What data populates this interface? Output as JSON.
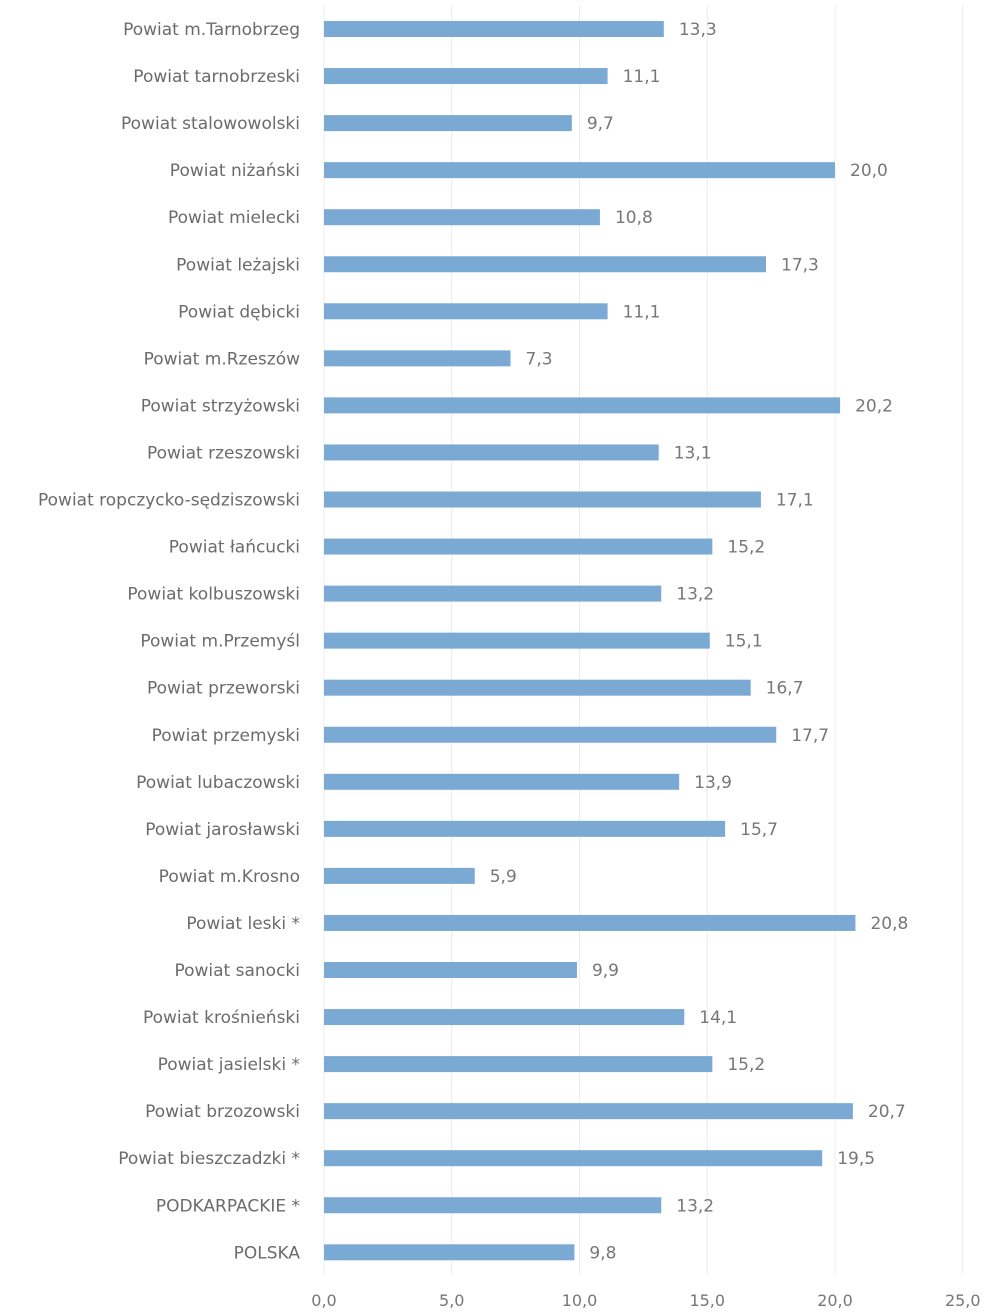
{
  "chart_data": {
    "type": "bar",
    "orientation": "horizontal",
    "categories": [
      "Powiat m.Tarnobrzeg",
      "Powiat tarnobrzeski",
      "Powiat stalowowolski",
      "Powiat niżański",
      "Powiat mielecki",
      "Powiat leżajski",
      "Powiat dębicki",
      "Powiat m.Rzeszów",
      "Powiat strzyżowski",
      "Powiat rzeszowski",
      "Powiat ropczycko-sędziszowski",
      "Powiat łańcucki",
      "Powiat kolbuszowski",
      "Powiat m.Przemyśl",
      "Powiat przeworski",
      "Powiat przemyski",
      "Powiat lubaczowski",
      "Powiat jarosławski",
      "Powiat m.Krosno",
      "Powiat leski *",
      "Powiat sanocki",
      "Powiat krośnieński",
      "Powiat jasielski *",
      "Powiat brzozowski",
      "Powiat bieszczadzki *",
      "PODKARPACKIE *",
      "POLSKA"
    ],
    "values": [
      13.3,
      11.1,
      9.7,
      20.0,
      10.8,
      17.3,
      11.1,
      7.3,
      20.2,
      13.1,
      17.1,
      15.2,
      13.2,
      15.1,
      16.7,
      17.7,
      13.9,
      15.7,
      5.9,
      20.8,
      9.9,
      14.1,
      15.2,
      20.7,
      19.5,
      13.2,
      9.8
    ],
    "value_labels": [
      "13,3",
      "11,1",
      "9,7",
      "20,0",
      "10,8",
      "17,3",
      "11,1",
      "7,3",
      "20,2",
      "13,1",
      "17,1",
      "15,2",
      "13,2",
      "15,1",
      "16,7",
      "17,7",
      "13,9",
      "15,7",
      "5,9",
      "20,8",
      "9,9",
      "14,1",
      "15,2",
      "20,7",
      "19,5",
      "13,2",
      "9,8"
    ],
    "xlim": [
      0,
      25
    ],
    "x_ticks": [
      0,
      5,
      10,
      15,
      20,
      25
    ],
    "x_tick_labels": [
      "0,0",
      "5,0",
      "10,0",
      "15,0",
      "20,0",
      "25,0"
    ],
    "title": "",
    "xlabel": "",
    "ylabel": "",
    "grid": true,
    "legend": "none",
    "bar_color": "#7aaad4"
  }
}
